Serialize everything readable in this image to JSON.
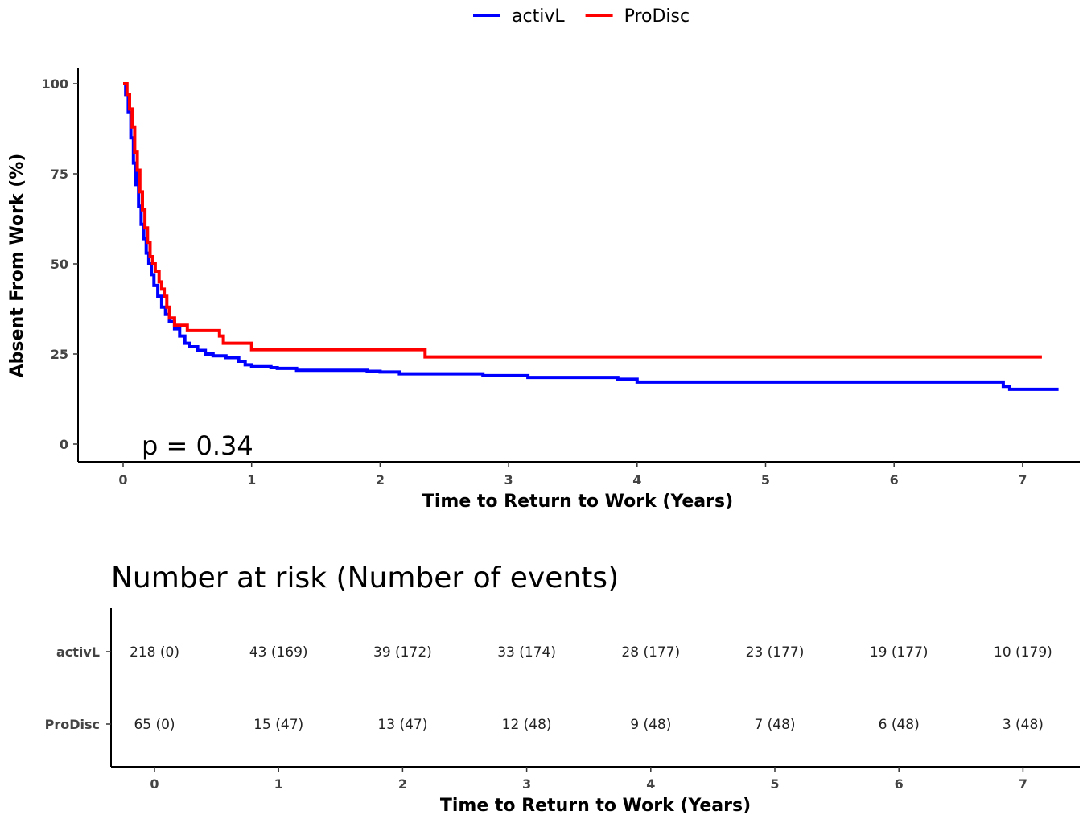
{
  "chart_data": [
    {
      "type": "line",
      "subtype": "kaplan-meier step",
      "xlabel": "Time to Return to Work (Years)",
      "ylabel": "Absent From Work (%)",
      "xlim": [
        -0.35,
        7.45
      ],
      "ylim": [
        -5,
        105
      ],
      "x_ticks": [
        0,
        1,
        2,
        3,
        4,
        5,
        6,
        7
      ],
      "y_ticks": [
        0,
        25,
        50,
        75,
        100
      ],
      "grid": false,
      "legend_position": "top",
      "annotation": "p = 0.34",
      "series": [
        {
          "name": "activL",
          "color": "#0000ff",
          "points": [
            [
              0,
              100
            ],
            [
              0.02,
              97
            ],
            [
              0.04,
              92
            ],
            [
              0.06,
              85
            ],
            [
              0.08,
              78
            ],
            [
              0.1,
              72
            ],
            [
              0.12,
              66
            ],
            [
              0.14,
              61
            ],
            [
              0.16,
              57
            ],
            [
              0.18,
              53
            ],
            [
              0.2,
              50
            ],
            [
              0.22,
              47
            ],
            [
              0.24,
              44
            ],
            [
              0.27,
              41
            ],
            [
              0.3,
              38
            ],
            [
              0.33,
              36
            ],
            [
              0.36,
              34
            ],
            [
              0.4,
              32
            ],
            [
              0.44,
              30
            ],
            [
              0.48,
              28
            ],
            [
              0.52,
              27
            ],
            [
              0.58,
              26
            ],
            [
              0.64,
              25
            ],
            [
              0.7,
              24.5
            ],
            [
              0.8,
              24
            ],
            [
              0.9,
              23
            ],
            [
              0.95,
              22
            ],
            [
              1.0,
              21.5
            ],
            [
              1.15,
              21.2
            ],
            [
              1.2,
              21
            ],
            [
              1.35,
              20.5
            ],
            [
              1.9,
              20.2
            ],
            [
              2.0,
              20
            ],
            [
              2.15,
              19.5
            ],
            [
              2.8,
              19
            ],
            [
              3.15,
              18.5
            ],
            [
              3.85,
              18
            ],
            [
              4.0,
              17.2
            ],
            [
              6.8,
              17.2
            ],
            [
              6.85,
              16
            ],
            [
              6.9,
              15.2
            ],
            [
              7.28,
              15.2
            ]
          ]
        },
        {
          "name": "ProDisc",
          "color": "#ff0000",
          "points": [
            [
              0,
              100
            ],
            [
              0.03,
              97
            ],
            [
              0.05,
              93
            ],
            [
              0.07,
              88
            ],
            [
              0.09,
              81
            ],
            [
              0.11,
              76
            ],
            [
              0.13,
              70
            ],
            [
              0.15,
              65
            ],
            [
              0.17,
              60
            ],
            [
              0.19,
              56
            ],
            [
              0.21,
              52
            ],
            [
              0.23,
              50
            ],
            [
              0.25,
              48
            ],
            [
              0.28,
              45
            ],
            [
              0.3,
              43
            ],
            [
              0.32,
              41
            ],
            [
              0.34,
              38
            ],
            [
              0.36,
              35
            ],
            [
              0.4,
              33
            ],
            [
              0.5,
              31.5
            ],
            [
              0.75,
              30
            ],
            [
              0.78,
              28
            ],
            [
              1.0,
              26.2
            ],
            [
              2.35,
              24.2
            ],
            [
              7.15,
              24.2
            ]
          ]
        }
      ]
    },
    {
      "type": "table",
      "title": "Number at risk (Number of events)",
      "xlabel": "Time to Return to Work (Years)",
      "x_ticks": [
        0,
        1,
        2,
        3,
        4,
        5,
        6,
        7
      ],
      "rows": [
        {
          "label": "activL",
          "values": [
            "218 (0)",
            "43 (169)",
            "39 (172)",
            "33 (174)",
            "28 (177)",
            "23 (177)",
            "19 (177)",
            "10 (179)"
          ]
        },
        {
          "label": "ProDisc",
          "values": [
            "65 (0)",
            "15 (47)",
            "13 (47)",
            "12 (48)",
            "9 (48)",
            "7 (48)",
            "6 (48)",
            "3 (48)"
          ]
        }
      ]
    }
  ]
}
